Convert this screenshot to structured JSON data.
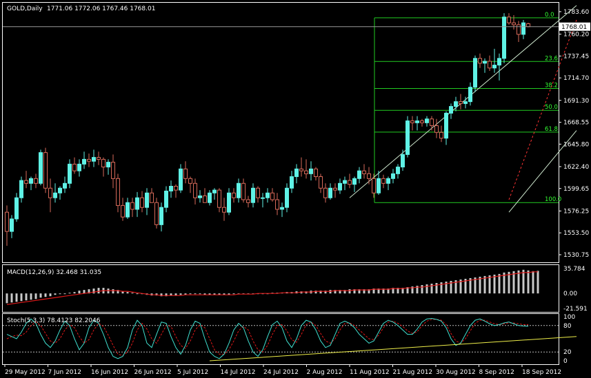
{
  "colors": {
    "background": "#000000",
    "grid": "#ffffff",
    "bull": "#5ff2e6",
    "bear": "#d86a5a",
    "fib": "#22cc22",
    "channel": "#cfe8cf",
    "dashed": "#ff3333",
    "macd_hist": "#c9c9c9",
    "macd_signal": "#e01818",
    "stoch_main": "#40e0d0",
    "stoch_signal": "#e01818",
    "trend": "#f0f04a",
    "price_line": "#9a9a9a"
  },
  "chart_data": [
    {
      "type": "candlestick",
      "title": "GOLD,Daily",
      "ohlc_readout": "1771.06 1772.06 1767.46 1768.01",
      "last_price_label": "1768.01",
      "last_price": 1768.01,
      "ylim": [
        1525.0,
        1790.0
      ],
      "yticks": [
        "1783.60",
        "1760.20",
        "1737.45",
        "1714.70",
        "1691.30",
        "1668.55",
        "1645.80",
        "1622.40",
        "1599.65",
        "1576.25",
        "1553.50",
        "1530.75"
      ],
      "xtick_labels": [
        "29 May 2012",
        "7 Jun 2012",
        "16 Jun 2012",
        "26 Jun 2012",
        "5 Jul 2012",
        "14 Jul 2012",
        "24 Jul 2012",
        "2 Aug 2012",
        "11 Aug 2012",
        "21 Aug 2012",
        "30 Aug 2012",
        "8 Sep 2012",
        "18 Sep 2012"
      ],
      "candles": [
        [
          1575,
          1582,
          1540,
          1555
        ],
        [
          1555,
          1572,
          1548,
          1568
        ],
        [
          1568,
          1595,
          1565,
          1590
        ],
        [
          1590,
          1612,
          1585,
          1608
        ],
        [
          1608,
          1618,
          1600,
          1605
        ],
        [
          1605,
          1612,
          1598,
          1610
        ],
        [
          1610,
          1615,
          1600,
          1605
        ],
        [
          1605,
          1640,
          1603,
          1637
        ],
        [
          1637,
          1642,
          1595,
          1600
        ],
        [
          1600,
          1610,
          1575,
          1590
        ],
        [
          1590,
          1605,
          1585,
          1595
        ],
        [
          1595,
          1602,
          1588,
          1600
        ],
        [
          1600,
          1612,
          1595,
          1605
        ],
        [
          1605,
          1630,
          1600,
          1625
        ],
        [
          1625,
          1632,
          1615,
          1618
        ],
        [
          1618,
          1630,
          1612,
          1625
        ],
        [
          1625,
          1638,
          1620,
          1630
        ],
        [
          1630,
          1636,
          1622,
          1628
        ],
        [
          1628,
          1640,
          1622,
          1632
        ],
        [
          1632,
          1638,
          1624,
          1630
        ],
        [
          1630,
          1632,
          1612,
          1622
        ],
        [
          1622,
          1630,
          1614,
          1627
        ],
        [
          1627,
          1635,
          1600,
          1610
        ],
        [
          1610,
          1615,
          1575,
          1582
        ],
        [
          1582,
          1590,
          1566,
          1570
        ],
        [
          1570,
          1590,
          1568,
          1585
        ],
        [
          1585,
          1590,
          1570,
          1578
        ],
        [
          1578,
          1596,
          1570,
          1590
        ],
        [
          1590,
          1597,
          1575,
          1580
        ],
        [
          1580,
          1600,
          1572,
          1595
        ],
        [
          1595,
          1600,
          1585,
          1585
        ],
        [
          1585,
          1590,
          1558,
          1562
        ],
        [
          1562,
          1585,
          1555,
          1580
        ],
        [
          1580,
          1602,
          1575,
          1597
        ],
        [
          1597,
          1608,
          1590,
          1602
        ],
        [
          1602,
          1604,
          1590,
          1598
        ],
        [
          1598,
          1625,
          1595,
          1620
        ],
        [
          1620,
          1628,
          1605,
          1610
        ],
        [
          1610,
          1612,
          1595,
          1605
        ],
        [
          1605,
          1610,
          1583,
          1590
        ],
        [
          1590,
          1598,
          1585,
          1592
        ],
        [
          1592,
          1600,
          1585,
          1585
        ],
        [
          1585,
          1598,
          1582,
          1595
        ],
        [
          1595,
          1600,
          1588,
          1598
        ],
        [
          1598,
          1600,
          1575,
          1580
        ],
        [
          1580,
          1590,
          1566,
          1575
        ],
        [
          1575,
          1600,
          1572,
          1595
        ],
        [
          1595,
          1600,
          1585,
          1590
        ],
        [
          1590,
          1610,
          1585,
          1605
        ],
        [
          1605,
          1610,
          1585,
          1588
        ],
        [
          1588,
          1592,
          1580,
          1585
        ],
        [
          1585,
          1605,
          1580,
          1600
        ],
        [
          1600,
          1602,
          1585,
          1590
        ],
        [
          1590,
          1595,
          1580,
          1590
        ],
        [
          1590,
          1600,
          1585,
          1595
        ],
        [
          1595,
          1600,
          1586,
          1588
        ],
        [
          1588,
          1595,
          1572,
          1578
        ],
        [
          1578,
          1585,
          1570,
          1580
        ],
        [
          1580,
          1605,
          1575,
          1600
        ],
        [
          1600,
          1618,
          1595,
          1612
        ],
        [
          1612,
          1625,
          1605,
          1620
        ],
        [
          1620,
          1632,
          1612,
          1618
        ],
        [
          1618,
          1630,
          1610,
          1615
        ],
        [
          1615,
          1628,
          1608,
          1620
        ],
        [
          1620,
          1622,
          1608,
          1612
        ],
        [
          1612,
          1615,
          1595,
          1600
        ],
        [
          1600,
          1605,
          1585,
          1590
        ],
        [
          1590,
          1605,
          1588,
          1600
        ],
        [
          1600,
          1605,
          1590,
          1598
        ],
        [
          1598,
          1610,
          1594,
          1605
        ],
        [
          1605,
          1612,
          1598,
          1608
        ],
        [
          1608,
          1615,
          1600,
          1604
        ],
        [
          1604,
          1612,
          1596,
          1610
        ],
        [
          1610,
          1622,
          1605,
          1618
        ],
        [
          1618,
          1625,
          1610,
          1615
        ],
        [
          1615,
          1622,
          1604,
          1610
        ],
        [
          1610,
          1615,
          1590,
          1595
        ],
        [
          1595,
          1618,
          1593,
          1610
        ],
        [
          1610,
          1614,
          1600,
          1605
        ],
        [
          1605,
          1612,
          1598,
          1610
        ],
        [
          1610,
          1620,
          1605,
          1615
        ],
        [
          1615,
          1625,
          1610,
          1622
        ],
        [
          1622,
          1640,
          1618,
          1635
        ],
        [
          1635,
          1675,
          1632,
          1670
        ],
        [
          1670,
          1675,
          1660,
          1668
        ],
        [
          1668,
          1675,
          1660,
          1670
        ],
        [
          1670,
          1672,
          1664,
          1668
        ],
        [
          1668,
          1675,
          1664,
          1672
        ],
        [
          1672,
          1675,
          1660,
          1665
        ],
        [
          1665,
          1672,
          1652,
          1658
        ],
        [
          1658,
          1665,
          1648,
          1652
        ],
        [
          1652,
          1680,
          1645,
          1678
        ],
        [
          1678,
          1688,
          1672,
          1685
        ],
        [
          1685,
          1695,
          1680,
          1690
        ],
        [
          1690,
          1698,
          1682,
          1688
        ],
        [
          1688,
          1695,
          1683,
          1690
        ],
        [
          1690,
          1710,
          1686,
          1705
        ],
        [
          1705,
          1738,
          1700,
          1735
        ],
        [
          1735,
          1740,
          1725,
          1730
        ],
        [
          1730,
          1735,
          1720,
          1732
        ],
        [
          1732,
          1738,
          1722,
          1725
        ],
        [
          1725,
          1745,
          1720,
          1728
        ],
        [
          1728,
          1740,
          1712,
          1735
        ],
        [
          1735,
          1782,
          1730,
          1778
        ],
        [
          1778,
          1782,
          1770,
          1772
        ],
        [
          1772,
          1780,
          1765,
          1770
        ],
        [
          1770,
          1774,
          1752,
          1760
        ],
        [
          1760,
          1775,
          1755,
          1772
        ],
        [
          1771.06,
          1772.06,
          1767.46,
          1768.01
        ]
      ],
      "fibonacci": {
        "levels": [
          "0.0",
          "23.6",
          "38.2",
          "50.0",
          "61.8",
          "100.0"
        ],
        "prices": [
          1777.2,
          1731.8,
          1703.7,
          1681.0,
          1658.3,
          1585.0
        ]
      },
      "channel": {
        "upper": [
          [
            71,
            1590
          ],
          [
            118,
            1790
          ]
        ],
        "middle_dashed": [
          [
            104,
            1588
          ],
          [
            118,
            1775
          ]
        ],
        "lower": [
          [
            104,
            1575
          ],
          [
            118,
            1660
          ]
        ]
      }
    },
    {
      "type": "macd",
      "label": "MACD(12,26,9) 32.468 31.035",
      "yticks": [
        "35.784",
        "0.00",
        "-21.591"
      ],
      "ylim": [
        -21.591,
        35.784
      ],
      "histogram": [
        -14,
        -13,
        -12,
        -11,
        -10,
        -9,
        -8,
        -6,
        -5,
        -4,
        -2,
        -1,
        0,
        1,
        2,
        4,
        5,
        6,
        7,
        8,
        8,
        7,
        6,
        5,
        3,
        2,
        1,
        0,
        -1,
        -2,
        -3,
        -3,
        -4,
        -4,
        -3,
        -3,
        -2,
        -2,
        -1,
        -1,
        -1,
        -2,
        -2,
        -2,
        -2,
        -2,
        -2,
        -1,
        -1,
        -1,
        0,
        0,
        0,
        0,
        0,
        1,
        1,
        1,
        2,
        2,
        3,
        3,
        3,
        4,
        4,
        4,
        4,
        5,
        5,
        5,
        5,
        6,
        6,
        6,
        6,
        6,
        7,
        7,
        7,
        7,
        8,
        8,
        8,
        9,
        10,
        11,
        12,
        13,
        14,
        15,
        16,
        17,
        18,
        19,
        20,
        21,
        22,
        23,
        24,
        25,
        26,
        27,
        28,
        30,
        31,
        32,
        33,
        34,
        33,
        32,
        32.468
      ],
      "signal": [
        -16,
        -15,
        -14,
        -13,
        -12,
        -11,
        -10,
        -9,
        -8,
        -7,
        -6,
        -5,
        -4,
        -3,
        -2,
        -1,
        0,
        1,
        2,
        3,
        4,
        4,
        4,
        4,
        3,
        3,
        2,
        1,
        0,
        -1,
        -2,
        -2,
        -3,
        -3,
        -3,
        -3,
        -3,
        -2,
        -2,
        -2,
        -2,
        -2,
        -2,
        -2,
        -2,
        -2,
        -2,
        -2,
        -1,
        -1,
        -1,
        -1,
        0,
        0,
        0,
        0,
        0,
        1,
        1,
        1,
        1,
        2,
        2,
        2,
        3,
        3,
        3,
        3,
        4,
        4,
        4,
        4,
        5,
        5,
        5,
        5,
        6,
        6,
        6,
        6,
        7,
        7,
        7,
        8,
        8,
        9,
        9,
        10,
        11,
        12,
        13,
        14,
        15,
        16,
        17,
        18,
        19,
        20,
        21,
        22,
        23,
        24,
        25,
        26,
        27,
        28,
        29,
        30,
        30,
        31,
        31.035
      ]
    },
    {
      "type": "stochastic",
      "label": "Stoch(5,3,3) 78.4123 82.2046",
      "yticks": [
        "100",
        "80",
        "20",
        "0"
      ],
      "ylim": [
        0,
        100
      ],
      "main": [
        60,
        55,
        50,
        65,
        85,
        95,
        85,
        60,
        40,
        30,
        45,
        70,
        90,
        80,
        50,
        25,
        40,
        75,
        92,
        85,
        60,
        30,
        10,
        5,
        10,
        30,
        70,
        92,
        80,
        40,
        30,
        60,
        88,
        85,
        55,
        30,
        15,
        35,
        70,
        90,
        85,
        50,
        20,
        10,
        5,
        15,
        40,
        70,
        85,
        75,
        45,
        20,
        10,
        25,
        55,
        82,
        90,
        75,
        45,
        30,
        50,
        80,
        92,
        88,
        70,
        45,
        30,
        35,
        60,
        85,
        90,
        85,
        75,
        60,
        50,
        40,
        45,
        65,
        85,
        92,
        88,
        80,
        70,
        60,
        60,
        72,
        88,
        95,
        96,
        94,
        90,
        75,
        50,
        35,
        40,
        60,
        80,
        92,
        95,
        90,
        84,
        80,
        82,
        86,
        88,
        84,
        80,
        79,
        78.4123
      ],
      "signal": [
        50,
        55,
        58,
        57,
        65,
        80,
        88,
        80,
        62,
        45,
        40,
        50,
        70,
        82,
        75,
        55,
        40,
        48,
        70,
        85,
        78,
        58,
        35,
        15,
        12,
        20,
        40,
        70,
        85,
        72,
        50,
        40,
        60,
        80,
        78,
        55,
        35,
        28,
        45,
        70,
        82,
        75,
        50,
        25,
        15,
        15,
        25,
        45,
        68,
        78,
        70,
        45,
        25,
        20,
        35,
        60,
        80,
        82,
        68,
        48,
        42,
        60,
        82,
        88,
        80,
        62,
        45,
        40,
        50,
        70,
        85,
        86,
        80,
        70,
        60,
        50,
        48,
        58,
        75,
        88,
        90,
        85,
        78,
        68,
        62,
        66,
        80,
        90,
        94,
        94,
        92,
        82,
        62,
        45,
        40,
        50,
        68,
        85,
        92,
        92,
        88,
        84,
        82,
        84,
        86,
        86,
        84,
        82,
        82.2046
      ],
      "trend": [
        [
          42,
          0
        ],
        [
          118,
          55
        ]
      ]
    }
  ]
}
